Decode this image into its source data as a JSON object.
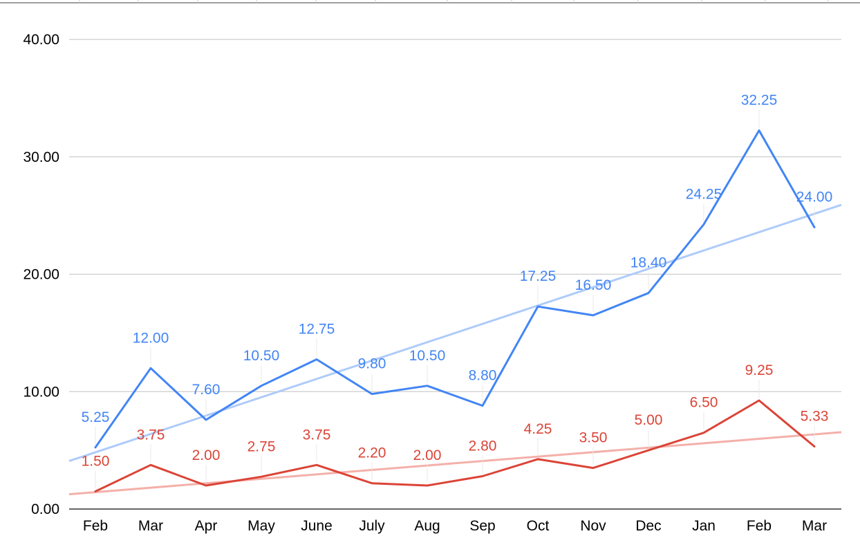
{
  "chart_data": {
    "type": "line",
    "title": "",
    "xlabel": "",
    "ylabel": "",
    "categories": [
      "Feb",
      "Mar",
      "Apr",
      "May",
      "June",
      "July",
      "Aug",
      "Sep",
      "Oct",
      "Nov",
      "Dec",
      "Jan",
      "Feb",
      "Mar"
    ],
    "yticks": [
      "0.00",
      "10.00",
      "20.00",
      "30.00",
      "40.00"
    ],
    "ylim": [
      0,
      40
    ],
    "grid": true,
    "legend": "none",
    "series": [
      {
        "color": "#4285f4",
        "trend_color": "#aecbfa",
        "values": [
          5.25,
          12.0,
          7.6,
          10.5,
          12.75,
          9.8,
          10.5,
          8.8,
          17.25,
          16.5,
          18.4,
          24.25,
          32.25,
          24.0
        ],
        "labels": [
          "5.25",
          "12.00",
          "7.60",
          "10.50",
          "12.75",
          "9.80",
          "10.50",
          "8.80",
          "17.25",
          "16.50",
          "18.40",
          "24.25",
          "32.25",
          "24.00"
        ],
        "trendline": true
      },
      {
        "color": "#db4437",
        "trend_color": "#f4b0aa",
        "values": [
          1.5,
          3.75,
          2.0,
          2.75,
          3.75,
          2.2,
          2.0,
          2.8,
          4.25,
          3.5,
          5.0,
          6.5,
          9.25,
          5.33
        ],
        "labels": [
          "1.50",
          "3.75",
          "2.00",
          "2.75",
          "3.75",
          "2.20",
          "2.00",
          "2.80",
          "4.25",
          "3.50",
          "5.00",
          "6.50",
          "9.25",
          "5.33"
        ],
        "trendline": true
      }
    ]
  }
}
